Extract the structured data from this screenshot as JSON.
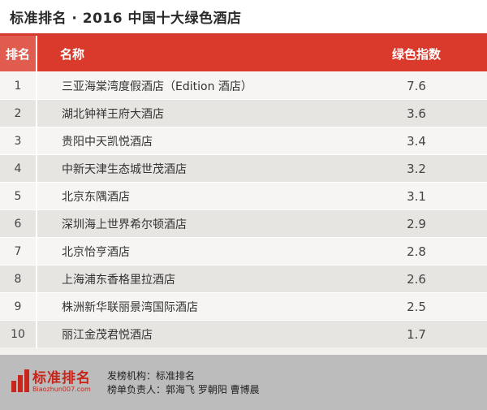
{
  "title": "标准排名 · 2016 中国十大绿色酒店",
  "table": {
    "headers": {
      "rank": "排名",
      "name": "名称",
      "score": "绿色指数"
    },
    "rows": [
      {
        "rank": "1",
        "name": "三亚海棠湾度假酒店（Edition 酒店）",
        "score": "7.6"
      },
      {
        "rank": "2",
        "name": "湖北钟祥王府大酒店",
        "score": "3.6"
      },
      {
        "rank": "3",
        "name": "贵阳中天凯悦酒店",
        "score": "3.4"
      },
      {
        "rank": "4",
        "name": "中新天津生态城世茂酒店",
        "score": "3.2"
      },
      {
        "rank": "5",
        "name": "北京东隅酒店",
        "score": "3.1"
      },
      {
        "rank": "6",
        "name": "深圳海上世界希尔顿酒店",
        "score": "2.9"
      },
      {
        "rank": "7",
        "name": "北京怡亨酒店",
        "score": "2.8"
      },
      {
        "rank": "8",
        "name": "上海浦东香格里拉酒店",
        "score": "2.6"
      },
      {
        "rank": "9",
        "name": "株洲新华联丽景湾国际酒店",
        "score": "2.5"
      },
      {
        "rank": "10",
        "name": "丽江金茂君悦酒店",
        "score": "1.7"
      }
    ]
  },
  "footer": {
    "logo_text": "标准排名",
    "logo_url": "Biaozhun007.com",
    "publisher": "发榜机构：标准排名",
    "editors": "榜单负责人：郭海飞  罗朝阳  曹博晨"
  },
  "colors": {
    "accent": "#d93a2b",
    "row_light": "#f6f5f3",
    "row_dark": "#e7e5e2",
    "footer_bg": "#bcbcbc"
  }
}
